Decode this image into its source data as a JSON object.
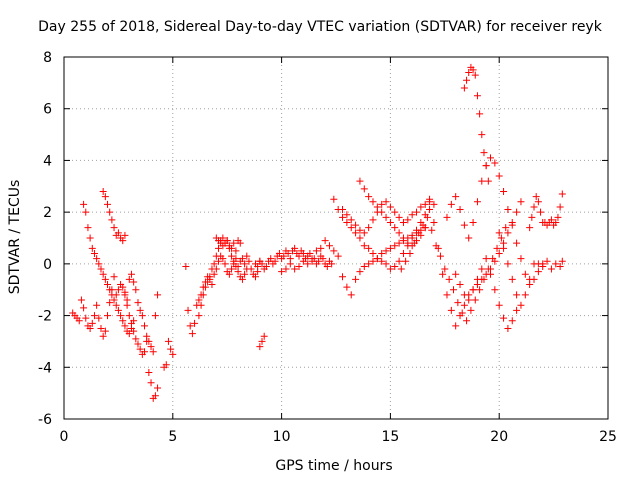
{
  "chart_data": {
    "type": "scatter",
    "title": "Day 255 of 2018, Sidereal Day-to-day VTEC variation (SDTVAR) for receiver reyk",
    "xlabel": "GPS time / hours",
    "ylabel": "SDTVAR / TECUs",
    "xlim": [
      0,
      25
    ],
    "ylim": [
      -6,
      8
    ],
    "xticks": [
      0,
      5,
      10,
      15,
      20,
      25
    ],
    "yticks": [
      -6,
      -4,
      -2,
      0,
      2,
      4,
      6,
      8
    ],
    "grid": true,
    "marker": "+",
    "color": "#ff0000",
    "series": [
      {
        "name": "segment-1",
        "x": [
          0.4,
          0.5,
          0.6,
          0.7
        ],
        "y": [
          -1.9,
          -2.0,
          -2.1,
          -2.2
        ]
      },
      {
        "name": "segment-2",
        "x": [
          0.8,
          0.9,
          1.0,
          1.1,
          1.2,
          1.3,
          1.4,
          1.5,
          1.6,
          1.7,
          1.8,
          1.9,
          2.0,
          2.1,
          2.2,
          2.3
        ],
        "y": [
          -1.4,
          -1.7,
          -2.1,
          -2.4,
          -2.5,
          -2.3,
          -2.0,
          -1.6,
          -2.1,
          -2.5,
          -2.8,
          -2.6,
          -2.0,
          -1.5,
          -1.0,
          -0.5
        ]
      },
      {
        "name": "segment-3",
        "x": [
          0.9,
          1.0,
          1.1,
          1.2,
          1.3,
          1.4,
          1.5,
          1.6,
          1.7,
          1.8,
          1.9,
          2.0,
          2.1,
          2.2,
          2.3,
          2.4,
          2.5,
          2.6,
          2.7,
          2.8,
          2.9,
          3.0,
          3.1,
          3.2
        ],
        "y": [
          2.3,
          2.0,
          1.4,
          1.0,
          0.6,
          0.4,
          0.2,
          0.0,
          -0.2,
          -0.4,
          -0.6,
          -0.8,
          -1.0,
          -1.2,
          -1.4,
          -1.6,
          -1.8,
          -2.0,
          -2.2,
          -2.4,
          -2.6,
          -2.7,
          -2.5,
          -2.2
        ]
      },
      {
        "name": "segment-4",
        "x": [
          1.8,
          1.9,
          2.0,
          2.1,
          2.2,
          2.3,
          2.4,
          2.5,
          2.6,
          2.7,
          2.8
        ],
        "y": [
          2.8,
          2.6,
          2.3,
          2.0,
          1.7,
          1.4,
          1.1,
          1.2,
          1.0,
          0.9,
          1.1
        ]
      },
      {
        "name": "segment-5",
        "x": [
          2.4,
          2.5,
          2.6,
          2.7,
          2.8,
          2.9,
          3.0,
          3.1,
          3.2,
          3.3,
          3.4,
          3.5,
          3.6,
          3.7,
          3.8,
          3.9,
          4.0,
          4.1,
          4.2,
          4.3
        ],
        "y": [
          -1.2,
          -1.0,
          -0.8,
          -0.9,
          -1.1,
          -1.4,
          -0.6,
          -0.4,
          -0.7,
          -1.0,
          -1.5,
          -1.8,
          -2.0,
          -2.4,
          -2.8,
          -3.0,
          -3.2,
          -3.4,
          -2.0,
          -1.2
        ]
      },
      {
        "name": "segment-6",
        "x": [
          2.8,
          2.9,
          3.0,
          3.1,
          3.2,
          3.3,
          3.4,
          3.5,
          3.6,
          3.7,
          3.8
        ],
        "y": [
          -1.2,
          -1.6,
          -2.0,
          -2.3,
          -2.6,
          -2.9,
          -3.1,
          -3.3,
          -3.5,
          -3.4,
          -3.0
        ]
      },
      {
        "name": "segment-7",
        "x": [
          3.9,
          4.0,
          4.1,
          4.2,
          4.3
        ],
        "y": [
          -4.2,
          -4.6,
          -5.2,
          -5.1,
          -4.8
        ]
      },
      {
        "name": "segment-8",
        "x": [
          4.6,
          4.7
        ],
        "y": [
          -4.0,
          -3.9
        ]
      },
      {
        "name": "segment-9",
        "x": [
          4.8,
          4.9,
          5.0
        ],
        "y": [
          -3.0,
          -3.3,
          -3.5
        ]
      },
      {
        "name": "segment-10",
        "x": [
          5.6,
          5.7,
          5.8,
          5.9,
          6.0,
          6.1,
          6.2,
          6.3,
          6.4,
          6.5,
          6.6,
          6.7,
          6.8,
          6.9,
          7.0,
          7.1,
          7.2,
          7.3,
          7.4,
          7.5,
          7.6,
          7.7,
          7.8,
          7.9,
          8.0,
          8.1,
          8.2,
          8.3,
          8.4,
          8.5,
          8.6,
          8.7,
          8.8,
          8.9,
          9.0
        ],
        "y": [
          -0.1,
          -1.8,
          -2.4,
          -2.7,
          -2.3,
          -1.6,
          -1.4,
          -1.2,
          -0.9,
          -0.7,
          -0.5,
          -0.6,
          -0.8,
          -0.4,
          -0.2,
          0.1,
          0.3,
          0.2,
          0.0,
          -0.3,
          -0.4,
          -0.2,
          0.0,
          0.2,
          -0.1,
          0.1,
          0.2,
          0.0,
          0.3,
          0.1,
          -0.2,
          -0.4,
          -0.5,
          -0.3,
          0.1
        ]
      },
      {
        "name": "segment-11",
        "x": [
          6.2,
          6.3,
          6.4,
          6.5,
          6.6,
          6.7,
          6.8,
          6.9,
          7.0,
          7.1,
          7.2,
          7.3,
          7.4,
          7.5,
          7.6,
          7.7,
          7.8,
          7.9,
          8.0,
          8.1,
          8.2,
          8.3,
          8.4
        ],
        "y": [
          -2.0,
          -1.6,
          -1.2,
          -0.9,
          -0.7,
          -0.5,
          -0.2,
          0.0,
          0.3,
          0.6,
          0.9,
          1.0,
          0.8,
          0.9,
          0.6,
          0.3,
          0.1,
          -0.1,
          -0.3,
          -0.5,
          -0.6,
          -0.4,
          -0.2
        ]
      },
      {
        "name": "segment-12",
        "x": [
          7.0,
          7.1,
          7.2,
          7.3,
          7.4,
          7.5,
          7.6,
          7.7,
          7.8,
          7.9,
          8.0,
          8.1
        ],
        "y": [
          1.0,
          0.9,
          0.8,
          0.7,
          0.8,
          0.9,
          0.7,
          0.6,
          0.8,
          0.5,
          0.9,
          0.8
        ]
      },
      {
        "name": "segment-13",
        "x": [
          9.0,
          9.1,
          9.2
        ],
        "y": [
          -3.2,
          -3.0,
          -2.8
        ]
      },
      {
        "name": "segment-14",
        "x": [
          8.8,
          8.9,
          9.0,
          9.1,
          9.2,
          9.3,
          9.4,
          9.5,
          9.6,
          9.7,
          9.8,
          9.9,
          10.0,
          10.1,
          10.2,
          10.3,
          10.4,
          10.5,
          10.6,
          10.7,
          10.8,
          10.9,
          11.0,
          11.1,
          11.2,
          11.3,
          11.4,
          11.5,
          11.6,
          11.7,
          11.8,
          11.9,
          12.0,
          12.1,
          12.2,
          12.3
        ],
        "y": [
          0.0,
          -0.1,
          0.1,
          0.0,
          -0.2,
          -0.1,
          0.1,
          0.2,
          0.0,
          0.1,
          0.3,
          0.4,
          0.2,
          0.3,
          0.5,
          0.4,
          0.2,
          0.5,
          0.6,
          0.4,
          0.3,
          0.5,
          0.4,
          0.2,
          0.3,
          0.4,
          0.1,
          0.2,
          0.0,
          0.1,
          0.3,
          0.2,
          0.0,
          -0.1,
          0.1,
          0.0
        ]
      },
      {
        "name": "segment-15",
        "x": [
          10.0,
          10.2,
          10.4,
          10.6,
          10.8,
          11.0,
          11.2,
          11.4,
          11.6,
          11.8,
          12.0,
          12.2,
          12.4,
          12.6
        ],
        "y": [
          -0.3,
          -0.2,
          0.0,
          -0.2,
          -0.1,
          0.1,
          0.0,
          0.2,
          0.5,
          0.6,
          0.9,
          0.7,
          0.5,
          0.3
        ]
      },
      {
        "name": "segment-16",
        "x": [
          12.4,
          12.6,
          12.8,
          13.0,
          13.2,
          13.4,
          13.6,
          13.8,
          14.0,
          14.2,
          14.4,
          14.6,
          14.8,
          15.0,
          15.2,
          15.4,
          15.6,
          15.8,
          16.0,
          16.2,
          16.4,
          16.6,
          16.8,
          17.0
        ],
        "y": [
          2.5,
          2.1,
          1.8,
          1.6,
          1.4,
          1.2,
          1.0,
          0.7,
          0.6,
          0.4,
          0.2,
          0.1,
          0.0,
          -0.2,
          -0.1,
          0.1,
          0.4,
          0.7,
          1.0,
          1.3,
          1.6,
          1.9,
          2.1,
          2.3
        ]
      },
      {
        "name": "segment-17",
        "x": [
          12.8,
          13.0,
          13.2,
          13.4,
          13.6,
          13.8,
          14.0,
          14.2,
          14.4,
          14.6,
          14.8,
          15.0,
          15.2,
          15.4,
          15.6,
          15.8,
          16.0,
          16.2,
          16.4,
          16.6
        ],
        "y": [
          -0.5,
          -0.9,
          -1.2,
          -0.6,
          -0.3,
          -0.1,
          0.0,
          0.1,
          0.2,
          0.4,
          0.5,
          0.6,
          0.7,
          0.8,
          0.9,
          1.0,
          1.1,
          1.2,
          1.3,
          1.4
        ]
      },
      {
        "name": "segment-18",
        "x": [
          13.6,
          13.8,
          14.0,
          14.2,
          14.4,
          14.6,
          14.8,
          15.0,
          15.2,
          15.4,
          15.6,
          15.8,
          16.0,
          16.2,
          16.4,
          16.6
        ],
        "y": [
          3.2,
          2.9,
          2.6,
          2.4,
          2.2,
          2.0,
          1.8,
          1.6,
          1.4,
          1.2,
          1.0,
          0.8,
          0.7,
          0.9,
          1.1,
          1.4
        ]
      },
      {
        "name": "segment-19",
        "x": [
          12.8,
          13.0,
          13.2,
          13.4,
          13.6,
          13.8,
          14.0,
          14.2,
          14.4,
          14.6,
          14.8,
          15.0,
          15.2,
          15.4,
          15.6,
          15.8,
          16.0,
          16.2,
          16.4,
          16.6,
          16.8
        ],
        "y": [
          2.1,
          1.9,
          1.7,
          1.5,
          1.3,
          1.2,
          1.4,
          1.7,
          2.0,
          2.3,
          2.4,
          2.2,
          2.0,
          1.8,
          1.6,
          1.7,
          1.9,
          2.0,
          2.2,
          2.3,
          2.5
        ]
      },
      {
        "name": "segment-20",
        "x": [
          15.5,
          15.7,
          15.9,
          16.1,
          16.3,
          16.5,
          16.7,
          16.9,
          17.1,
          17.3,
          17.5,
          17.7,
          17.9,
          18.1,
          18.3,
          18.5,
          18.7,
          18.9,
          19.1,
          19.3,
          19.5,
          19.7,
          19.9,
          20.1,
          20.3
        ],
        "y": [
          -0.2,
          0.1,
          0.4,
          0.8,
          1.2,
          1.5,
          1.8,
          1.3,
          0.7,
          0.3,
          -0.2,
          -0.6,
          -1.0,
          -1.5,
          -1.9,
          -2.2,
          -1.8,
          -1.4,
          -1.0,
          -0.6,
          -0.2,
          0.2,
          0.6,
          1.0,
          1.4
        ]
      },
      {
        "name": "segment-21",
        "x": [
          16.8,
          17.0,
          17.2,
          17.4,
          17.6,
          17.8,
          18.0,
          18.2,
          18.4,
          18.6,
          18.8,
          19.0,
          19.2,
          19.4,
          19.6,
          19.8,
          20.0,
          20.2,
          20.4,
          20.6,
          20.8,
          21.0
        ],
        "y": [
          2.4,
          1.6,
          0.6,
          -0.4,
          -1.2,
          -1.8,
          -2.4,
          -2.0,
          -1.6,
          -1.2,
          -1.0,
          -0.8,
          -0.6,
          -0.4,
          -0.2,
          0.1,
          0.4,
          0.8,
          1.2,
          1.6,
          2.0,
          2.4
        ]
      },
      {
        "name": "segment-22",
        "x": [
          17.6,
          17.8,
          18.0,
          18.2,
          18.4,
          18.6,
          18.8,
          19.0,
          19.2,
          19.4,
          19.6,
          19.8,
          20.0,
          20.2,
          20.4,
          20.6,
          20.8,
          21.0,
          21.2,
          21.4,
          21.6,
          21.8,
          22.0
        ],
        "y": [
          1.8,
          2.3,
          2.6,
          2.1,
          1.5,
          1.0,
          1.6,
          2.4,
          3.2,
          3.8,
          4.1,
          3.9,
          3.4,
          2.8,
          2.1,
          1.5,
          0.8,
          0.2,
          -0.4,
          -0.8,
          -0.6,
          -0.3,
          0.0
        ]
      },
      {
        "name": "segment-23",
        "x": [
          18.4,
          18.5,
          18.6,
          18.7,
          18.8,
          18.9,
          19.0,
          19.1,
          19.2,
          19.3,
          19.4,
          19.5
        ],
        "y": [
          6.8,
          7.1,
          7.4,
          7.6,
          7.5,
          7.3,
          6.5,
          5.8,
          5.0,
          4.3,
          3.8,
          3.2
        ]
      },
      {
        "name": "segment-24",
        "x": [
          18.0,
          18.2,
          18.4,
          18.6,
          18.8,
          19.0,
          19.2,
          19.4,
          19.6,
          19.8,
          20.0,
          20.2,
          20.4,
          20.6,
          20.8
        ],
        "y": [
          -0.4,
          -0.8,
          -1.2,
          -1.4,
          -1.0,
          -0.6,
          -0.2,
          0.2,
          -0.4,
          -1.0,
          -1.6,
          -2.1,
          -2.5,
          -2.2,
          -1.8
        ]
      },
      {
        "name": "segment-25",
        "x": [
          20.0,
          20.2,
          20.4,
          20.6,
          20.8,
          21.0,
          21.2,
          21.4,
          21.6
        ],
        "y": [
          1.2,
          0.6,
          0.0,
          -0.6,
          -1.2,
          -1.6,
          -1.2,
          -0.6,
          0.0
        ]
      },
      {
        "name": "segment-26",
        "x": [
          21.8,
          22.0,
          22.2,
          22.4,
          22.6,
          22.8,
          22.9
        ],
        "y": [
          0.0,
          -0.1,
          0.1,
          -0.2,
          0.0,
          -0.1,
          0.1
        ]
      },
      {
        "name": "segment-27",
        "x": [
          22.1,
          22.2,
          22.3,
          22.4,
          22.5,
          22.6,
          22.7,
          22.8,
          22.9
        ],
        "y": [
          1.6,
          1.5,
          1.6,
          1.7,
          1.5,
          1.6,
          1.8,
          2.2,
          2.7
        ]
      },
      {
        "name": "segment-28",
        "x": [
          21.4,
          21.5,
          21.6,
          21.7,
          21.8,
          21.9,
          22.0
        ],
        "y": [
          1.4,
          1.8,
          2.2,
          2.6,
          2.4,
          2.0,
          1.6
        ]
      }
    ]
  }
}
